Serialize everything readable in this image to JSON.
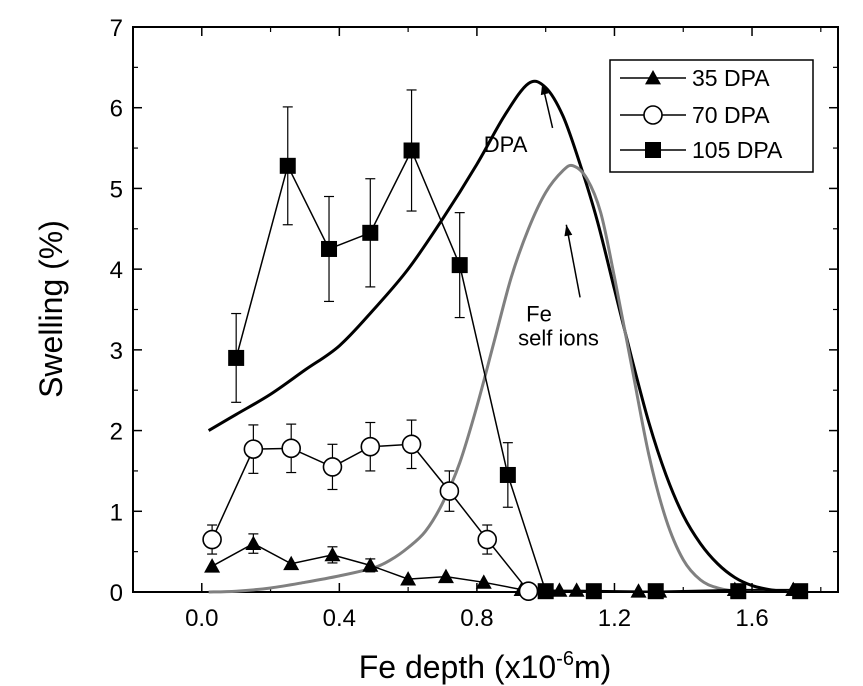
{
  "chart_data": {
    "type": "scatter",
    "xlabel": "Fe depth (x10",
    "xlabel_sup": "-6",
    "xlabel_end": "m)",
    "ylabel": "Swelling (%)",
    "xlim": [
      -0.2,
      1.85
    ],
    "ylim": [
      0,
      7
    ],
    "x_ticks": [
      0.0,
      0.4,
      0.8,
      1.2,
      1.6
    ],
    "x_tick_labels": [
      "0.0",
      "0.4",
      "0.8",
      "1.2",
      "1.6"
    ],
    "y_ticks": [
      0,
      1,
      2,
      3,
      4,
      5,
      6,
      7
    ],
    "y_tick_labels": [
      "0",
      "1",
      "2",
      "3",
      "4",
      "5",
      "6",
      "7"
    ],
    "legend": {
      "placement": "top-right",
      "entries": [
        {
          "label": "35   DPA",
          "marker": "triangle"
        },
        {
          "label": "70   DPA",
          "marker": "circle-open"
        },
        {
          "label": "105 DPA",
          "marker": "square"
        }
      ]
    },
    "series": [
      {
        "name": "35   DPA",
        "marker": "triangle",
        "points": [
          {
            "x": 0.03,
            "y": 0.32,
            "err": 0
          },
          {
            "x": 0.15,
            "y": 0.6,
            "err": 0.12
          },
          {
            "x": 0.26,
            "y": 0.35,
            "err": 0
          },
          {
            "x": 0.38,
            "y": 0.46,
            "err": 0.1
          },
          {
            "x": 0.49,
            "y": 0.33,
            "err": 0.08
          },
          {
            "x": 0.6,
            "y": 0.16,
            "err": 0
          },
          {
            "x": 0.71,
            "y": 0.19,
            "err": 0
          },
          {
            "x": 0.82,
            "y": 0.12,
            "err": 0
          },
          {
            "x": 0.93,
            "y": 0.03,
            "err": 0
          },
          {
            "x": 1.04,
            "y": 0.02,
            "err": 0
          },
          {
            "x": 1.09,
            "y": 0.02,
            "err": 0
          },
          {
            "x": 1.27,
            "y": 0.01,
            "err": 0
          },
          {
            "x": 1.33,
            "y": 0.01,
            "err": 0
          },
          {
            "x": 1.55,
            "y": 0.03,
            "err": 0
          },
          {
            "x": 1.72,
            "y": 0.03,
            "err": 0
          }
        ]
      },
      {
        "name": "70   DPA",
        "marker": "circle-open",
        "points": [
          {
            "x": 0.03,
            "y": 0.65,
            "err": 0.18
          },
          {
            "x": 0.15,
            "y": 1.77,
            "err": 0.3
          },
          {
            "x": 0.26,
            "y": 1.78,
            "err": 0.3
          },
          {
            "x": 0.38,
            "y": 1.55,
            "err": 0.28
          },
          {
            "x": 0.49,
            "y": 1.8,
            "err": 0.3
          },
          {
            "x": 0.61,
            "y": 1.83,
            "err": 0.3
          },
          {
            "x": 0.72,
            "y": 1.25,
            "err": 0.25
          },
          {
            "x": 0.83,
            "y": 0.65,
            "err": 0.18
          },
          {
            "x": 0.95,
            "y": 0.01,
            "err": 0
          }
        ]
      },
      {
        "name": "105 DPA",
        "marker": "square",
        "points": [
          {
            "x": 0.1,
            "y": 2.9,
            "err": 0.55
          },
          {
            "x": 0.25,
            "y": 5.28,
            "err": 0.73
          },
          {
            "x": 0.37,
            "y": 4.25,
            "err": 0.65
          },
          {
            "x": 0.49,
            "y": 4.45,
            "err": 0.67
          },
          {
            "x": 0.61,
            "y": 5.47,
            "err": 0.75
          },
          {
            "x": 0.75,
            "y": 4.05,
            "err": 0.65
          },
          {
            "x": 0.89,
            "y": 1.45,
            "err": 0.4
          },
          {
            "x": 1.0,
            "y": 0.01,
            "err": 0
          },
          {
            "x": 1.14,
            "y": 0.01,
            "err": 0
          },
          {
            "x": 1.32,
            "y": 0.01,
            "err": 0
          },
          {
            "x": 1.56,
            "y": 0.01,
            "err": 0
          },
          {
            "x": 1.74,
            "y": 0.01,
            "err": 0
          }
        ]
      }
    ],
    "curves": [
      {
        "label": "DPA",
        "color": "#000000",
        "points": [
          [
            0.02,
            2.0
          ],
          [
            0.1,
            2.2
          ],
          [
            0.2,
            2.45
          ],
          [
            0.3,
            2.75
          ],
          [
            0.4,
            3.05
          ],
          [
            0.5,
            3.5
          ],
          [
            0.6,
            4.0
          ],
          [
            0.7,
            4.62
          ],
          [
            0.8,
            5.3
          ],
          [
            0.88,
            5.9
          ],
          [
            0.95,
            6.3
          ],
          [
            1.0,
            6.25
          ],
          [
            1.05,
            5.9
          ],
          [
            1.1,
            5.3
          ],
          [
            1.15,
            4.6
          ],
          [
            1.2,
            3.75
          ],
          [
            1.25,
            2.9
          ],
          [
            1.3,
            2.1
          ],
          [
            1.35,
            1.45
          ],
          [
            1.4,
            0.95
          ],
          [
            1.45,
            0.6
          ],
          [
            1.5,
            0.35
          ],
          [
            1.55,
            0.18
          ],
          [
            1.6,
            0.08
          ],
          [
            1.65,
            0.03
          ],
          [
            1.7,
            0.005
          ]
        ]
      },
      {
        "label": "Fe self ions",
        "color": "#808080",
        "points": [
          [
            0.02,
            0.0
          ],
          [
            0.1,
            0.01
          ],
          [
            0.2,
            0.05
          ],
          [
            0.3,
            0.12
          ],
          [
            0.4,
            0.2
          ],
          [
            0.5,
            0.3
          ],
          [
            0.55,
            0.4
          ],
          [
            0.6,
            0.55
          ],
          [
            0.65,
            0.75
          ],
          [
            0.7,
            1.1
          ],
          [
            0.75,
            1.6
          ],
          [
            0.8,
            2.3
          ],
          [
            0.85,
            3.1
          ],
          [
            0.9,
            3.9
          ],
          [
            0.95,
            4.5
          ],
          [
            1.0,
            4.95
          ],
          [
            1.05,
            5.22
          ],
          [
            1.08,
            5.28
          ],
          [
            1.12,
            5.12
          ],
          [
            1.16,
            4.7
          ],
          [
            1.2,
            3.9
          ],
          [
            1.25,
            2.8
          ],
          [
            1.3,
            1.7
          ],
          [
            1.35,
            0.9
          ],
          [
            1.4,
            0.4
          ],
          [
            1.45,
            0.15
          ],
          [
            1.5,
            0.05
          ],
          [
            1.55,
            0.01
          ]
        ]
      }
    ],
    "annotations": [
      {
        "lines": [
          "DPA"
        ],
        "text_at": [
          0.82,
          5.45
        ],
        "arrow_from": [
          1.02,
          5.75
        ],
        "arrow_to": [
          0.99,
          6.3
        ]
      },
      {
        "lines": [
          "Fe",
          "self ions"
        ],
        "text_at": [
          0.92,
          3.35
        ],
        "arrow_from": [
          1.1,
          3.65
        ],
        "arrow_to": [
          1.06,
          4.55
        ]
      }
    ]
  }
}
